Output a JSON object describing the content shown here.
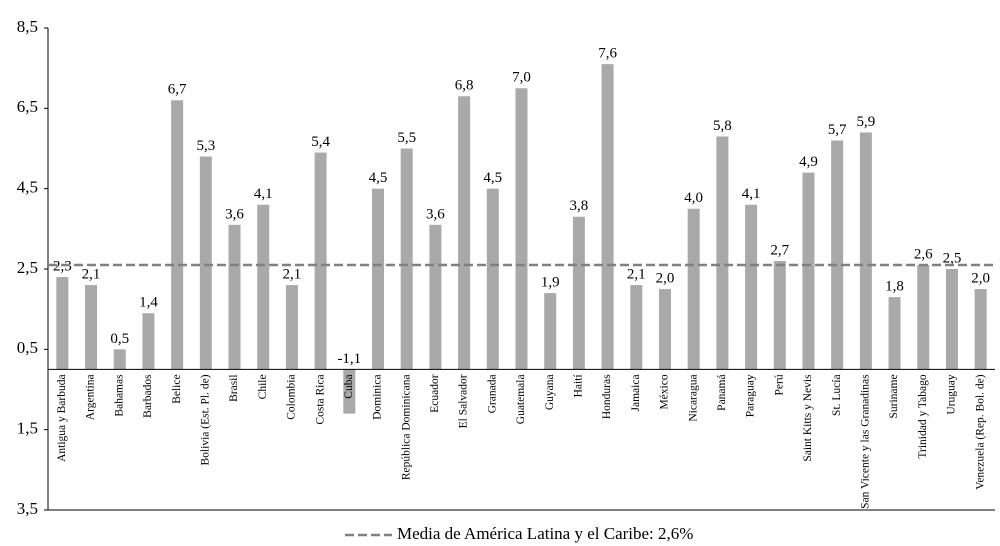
{
  "chart_data": {
    "type": "bar",
    "categories": [
      "Antigua y Barbuda",
      "Argentina",
      "Bahamas",
      "Barbados",
      "Belice",
      "Bolivia (Est. Pl. de)",
      "Brasil",
      "Chile",
      "Colombia",
      "Costa Rica",
      "Cuba",
      "Dominica",
      "República Dominicana",
      "Ecuador",
      "El Salvador",
      "Granada",
      "Guatemala",
      "Guyana",
      "Haití",
      "Honduras",
      "Jamaica",
      "México",
      "Nicaragua",
      "Panamá",
      "Paraguay",
      "Perú",
      "Saint Kitts y Nevis",
      "St. Lucía",
      "San Vicente y las Granadinas",
      "Suriname",
      "Trinidad y Tabago",
      "Uruguay",
      "Venezuela (Rep. Bol. de)"
    ],
    "values": [
      2.3,
      2.1,
      0.5,
      1.4,
      6.7,
      5.3,
      3.6,
      4.1,
      2.1,
      5.4,
      -1.1,
      4.5,
      5.5,
      3.6,
      6.8,
      4.5,
      7.0,
      1.9,
      3.8,
      7.6,
      2.1,
      2.0,
      4.0,
      5.8,
      4.1,
      2.7,
      4.9,
      5.7,
      5.9,
      1.8,
      2.6,
      2.5,
      2.0
    ],
    "value_labels": [
      "2,3",
      "2,1",
      "0,5",
      "1,4",
      "6,7",
      "5,3",
      "3,6",
      "4,1",
      "2,1",
      "5,4",
      "-1,1",
      "4,5",
      "5,5",
      "3,6",
      "6,8",
      "4,5",
      "7,0",
      "1,9",
      "3,8",
      "7,6",
      "2,1",
      "2,0",
      "4,0",
      "5,8",
      "4,1",
      "2,7",
      "4,9",
      "5,7",
      "5,9",
      "1,8",
      "2,6",
      "2,5",
      "2,0"
    ],
    "color": "#a9a9a9",
    "ylim": [
      -3.5,
      8.5
    ],
    "yticks": [
      {
        "value": 8.5,
        "label": "8,5"
      },
      {
        "value": 6.5,
        "label": "6,5"
      },
      {
        "value": 4.5,
        "label": "4,5"
      },
      {
        "value": 2.5,
        "label": "2,5"
      },
      {
        "value": 0.5,
        "label": "0,5"
      },
      {
        "value": -1.5,
        "label": "1,5"
      },
      {
        "value": -3.5,
        "label": "3,5"
      }
    ],
    "mean": 2.6,
    "mean_color": "#808080",
    "mean_label": "Media de América Latina y el Caribe: 2,6%"
  }
}
